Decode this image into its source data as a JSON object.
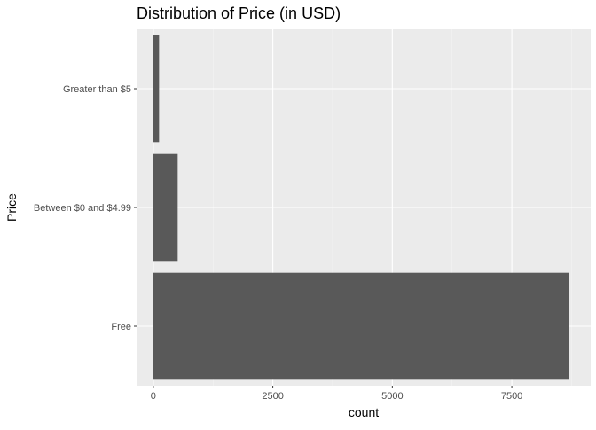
{
  "chart_data": {
    "type": "bar",
    "orientation": "horizontal",
    "title": "Distribution of Price (in USD)",
    "xlabel": "count",
    "ylabel": "Price",
    "categories": [
      "Free",
      "Between $0 and $4.99",
      "Greater than $5"
    ],
    "values": [
      8700,
      510,
      120
    ],
    "xlim": [
      -350,
      9150
    ],
    "xticks": [
      0,
      2500,
      5000,
      7500
    ],
    "xtick_labels": [
      "0",
      "2500",
      "5000",
      "7500"
    ],
    "grid": true,
    "legend": "none",
    "colors": {
      "bar": "#595959",
      "panel": "#ebebeb",
      "grid_major": "#ffffff",
      "grid_minor": "#f5f5f5",
      "tick_text": "#4d4d4d"
    }
  }
}
